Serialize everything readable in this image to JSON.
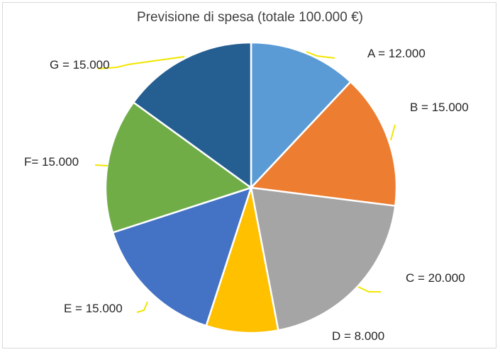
{
  "chart_data": {
    "type": "pie",
    "title": "Previsione di spesa (totale 100.000 €)",
    "total": 100000,
    "categories": [
      "A",
      "B",
      "C",
      "D",
      "E",
      "F",
      "G"
    ],
    "values": [
      12000,
      15000,
      20000,
      8000,
      15000,
      15000,
      15000
    ],
    "labels": [
      "A = 12.000",
      "B = 15.000",
      "C = 20.000",
      "D = 8.000",
      "E = 15.000",
      "F= 15.000",
      "G = 15.000"
    ],
    "colors": [
      "#5b9bd5",
      "#ed7d31",
      "#a5a5a5",
      "#ffc000",
      "#4472c4",
      "#70ad47",
      "#255e91"
    ],
    "leader_line_color": "#f2e600",
    "start_angle_deg": 0,
    "direction": "clockwise",
    "legend": "none"
  }
}
